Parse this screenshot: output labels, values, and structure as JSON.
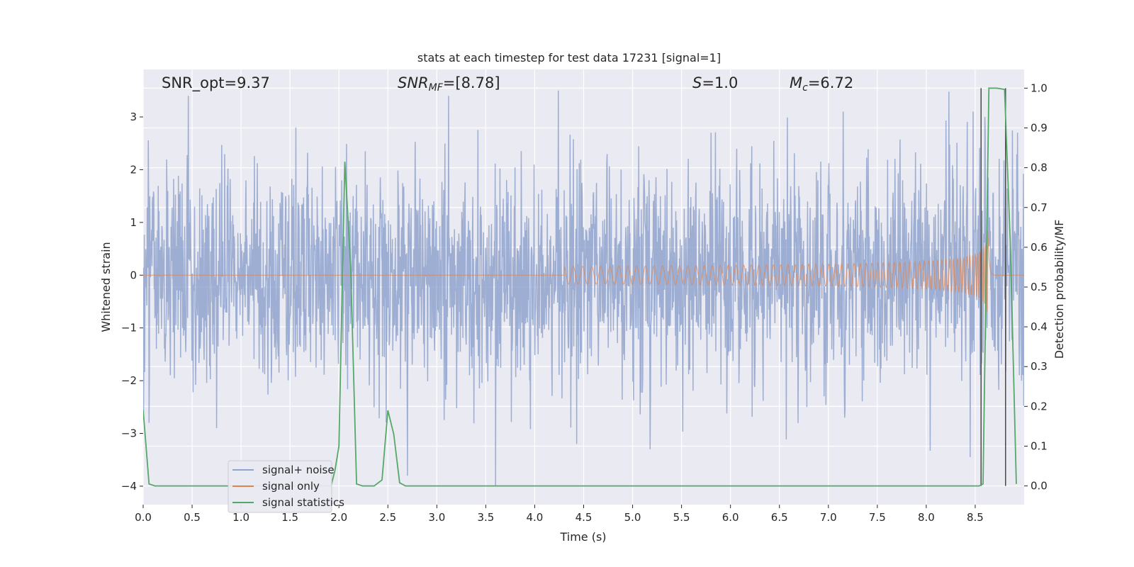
{
  "chart_data": {
    "type": "line",
    "title": "stats at each timestep for test data 17231 [signal=1]",
    "xlabel": "Time (s)",
    "ylabel": "Whitened strain",
    "y2label": "Detection probability/MF",
    "xlim": [
      0.0,
      9.0
    ],
    "ylim": [
      -4.35,
      3.9
    ],
    "y2lim": [
      -0.047,
      1.047
    ],
    "x_ticks": [
      "0.0",
      "0.5",
      "1.0",
      "1.5",
      "2.0",
      "2.5",
      "3.0",
      "3.5",
      "4.0",
      "4.5",
      "5.0",
      "5.5",
      "6.0",
      "6.5",
      "7.0",
      "7.5",
      "8.0",
      "8.5"
    ],
    "y_ticks": [
      "3",
      "2",
      "1",
      "0",
      "−1",
      "−2",
      "−3",
      "−4"
    ],
    "y2_ticks": [
      "1.0",
      "0.9",
      "0.8",
      "0.7",
      "0.6",
      "0.5",
      "0.4",
      "0.3",
      "0.2",
      "0.1",
      "0.0"
    ],
    "grid": true,
    "legend_position": "lower-left",
    "annotations": {
      "snr_opt": "SNR_opt=9.37",
      "snr_mf_prefix": "SNR",
      "snr_mf_sub": "MF",
      "snr_mf_value": "=[8.78]",
      "s_label": "S",
      "s_value": "=1.0",
      "mc_label": "M",
      "mc_sub": "c",
      "mc_value": "=6.72"
    },
    "series": [
      {
        "name": "signal+ noise",
        "color": "#8fa3cc",
        "kind": "noise",
        "noise_sigma": 1.0,
        "noise_peaks": [
          {
            "x": 0.46,
            "y": 3.4
          },
          {
            "x": 4.24,
            "y": 3.5
          },
          {
            "x": 3.12,
            "y": 3.4
          },
          {
            "x": 3.6,
            "y": -4.0
          },
          {
            "x": 2.7,
            "y": -3.8
          },
          {
            "x": 4.43,
            "y": -3.2
          },
          {
            "x": 5.18,
            "y": -3.3
          },
          {
            "x": 8.45,
            "y": -3.45
          },
          {
            "x": 0.75,
            "y": -2.9
          },
          {
            "x": 8.48,
            "y": 3.1
          },
          {
            "x": 8.6,
            "y": 3.0
          },
          {
            "x": 1.56,
            "y": 2.8
          },
          {
            "x": 5.8,
            "y": 2.7
          },
          {
            "x": 7.15,
            "y": 3.1
          },
          {
            "x": 0.06,
            "y": -2.8
          }
        ]
      },
      {
        "name": "signal only",
        "color": "#dd8452",
        "kind": "chirp",
        "start_time": 4.3,
        "merger_time": 8.63,
        "peak_amplitude": 0.95
      },
      {
        "name": "signal statistics",
        "color": "#55a868",
        "kind": "line",
        "axis": "right",
        "points": [
          [
            0.0,
            0.19
          ],
          [
            0.06,
            0.005
          ],
          [
            0.12,
            0.0
          ],
          [
            1.92,
            0.0
          ],
          [
            1.96,
            0.04
          ],
          [
            2.0,
            0.1
          ],
          [
            2.06,
            0.815
          ],
          [
            2.12,
            0.55
          ],
          [
            2.18,
            0.005
          ],
          [
            2.24,
            0.0
          ],
          [
            2.36,
            0.0
          ],
          [
            2.44,
            0.015
          ],
          [
            2.5,
            0.19
          ],
          [
            2.56,
            0.13
          ],
          [
            2.62,
            0.008
          ],
          [
            2.68,
            0.0
          ],
          [
            8.54,
            0.0
          ],
          [
            8.58,
            0.005
          ],
          [
            8.64,
            1.0
          ],
          [
            8.72,
            1.0
          ],
          [
            8.8,
            0.997
          ],
          [
            8.86,
            0.6
          ],
          [
            8.92,
            0.005
          ]
        ]
      }
    ],
    "vertical_markers": [
      {
        "x": 8.56,
        "y2_from": 0.0,
        "y2_to": 1.0,
        "color": "#4a4a4a"
      },
      {
        "x": 8.81,
        "y2_from": 0.0,
        "y2_to": 1.0,
        "color": "#4a4a4a"
      }
    ]
  }
}
